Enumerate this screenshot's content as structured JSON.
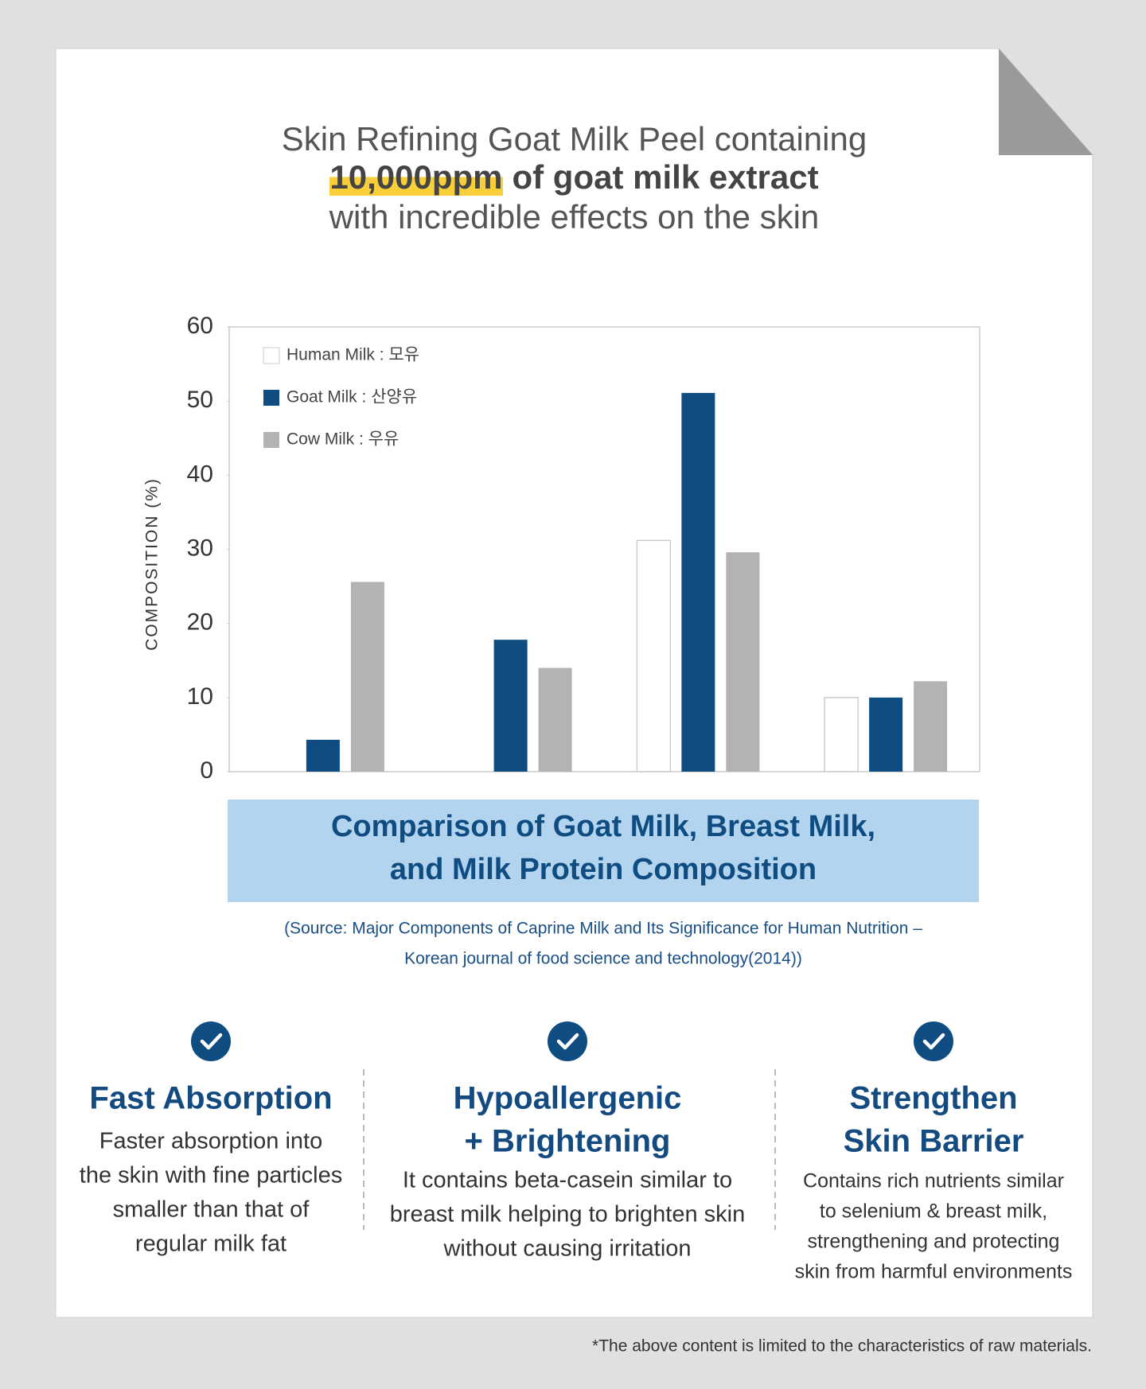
{
  "header": {
    "title_line1": "Skin Refining Goat Milk Peel containing",
    "title_highlight": "10,000ppm",
    "title_line2": "of goat milk extract",
    "title_line3": "with incredible effects on the skin"
  },
  "chart_data": {
    "type": "bar",
    "y_label": "COMPOSITION (%)",
    "categories": [
      null,
      null,
      null,
      null
    ],
    "series": [
      {
        "name": "Human Milk : 모유",
        "color": "#ffffff",
        "values": [
          0,
          0,
          31.2,
          10.0
        ]
      },
      {
        "name": "Goat Milk : 산양유",
        "color": "#0f4c81",
        "values": [
          4.3,
          17.8,
          51.1,
          10.0
        ]
      },
      {
        "name": "Cow Milk : 우유",
        "color": "#b3b3b3",
        "values": [
          25.6,
          14.0,
          29.6,
          12.2
        ]
      }
    ],
    "ylim": [
      0,
      60
    ],
    "yticks": [
      0,
      10,
      20,
      30,
      40,
      50,
      60
    ],
    "grid": false,
    "legend": "upper left"
  },
  "caption": {
    "lines": [
      "Comparison of Goat Milk, Breast Milk,",
      "and Milk Protein Composition"
    ],
    "source_lines": [
      "(Source: Major Components of Caprine Milk and Its Significance for Human Nutrition –",
      "Korean journal of food science and technology(2014))"
    ]
  },
  "features": [
    {
      "title_lines": [
        "Fast Absorption"
      ],
      "body_lines": [
        "Faster absorption into",
        "the skin with fine particles",
        "smaller than that of",
        "regular milk fat"
      ]
    },
    {
      "title_lines": [
        "Hypoallergenic",
        "+ Brightening"
      ],
      "body_lines": [
        "It contains beta-casein similar to",
        "breast milk helping to brighten skin",
        "without causing irritation"
      ]
    },
    {
      "title_lines": [
        "Strengthen",
        "Skin Barrier"
      ],
      "body_lines": [
        "Contains rich nutrients similar",
        "to selenium & breast milk,",
        "strengthening and protecting",
        "skin from harmful environments"
      ]
    }
  ],
  "footnote": "*The above content is limited to the characteristics of raw materials."
}
